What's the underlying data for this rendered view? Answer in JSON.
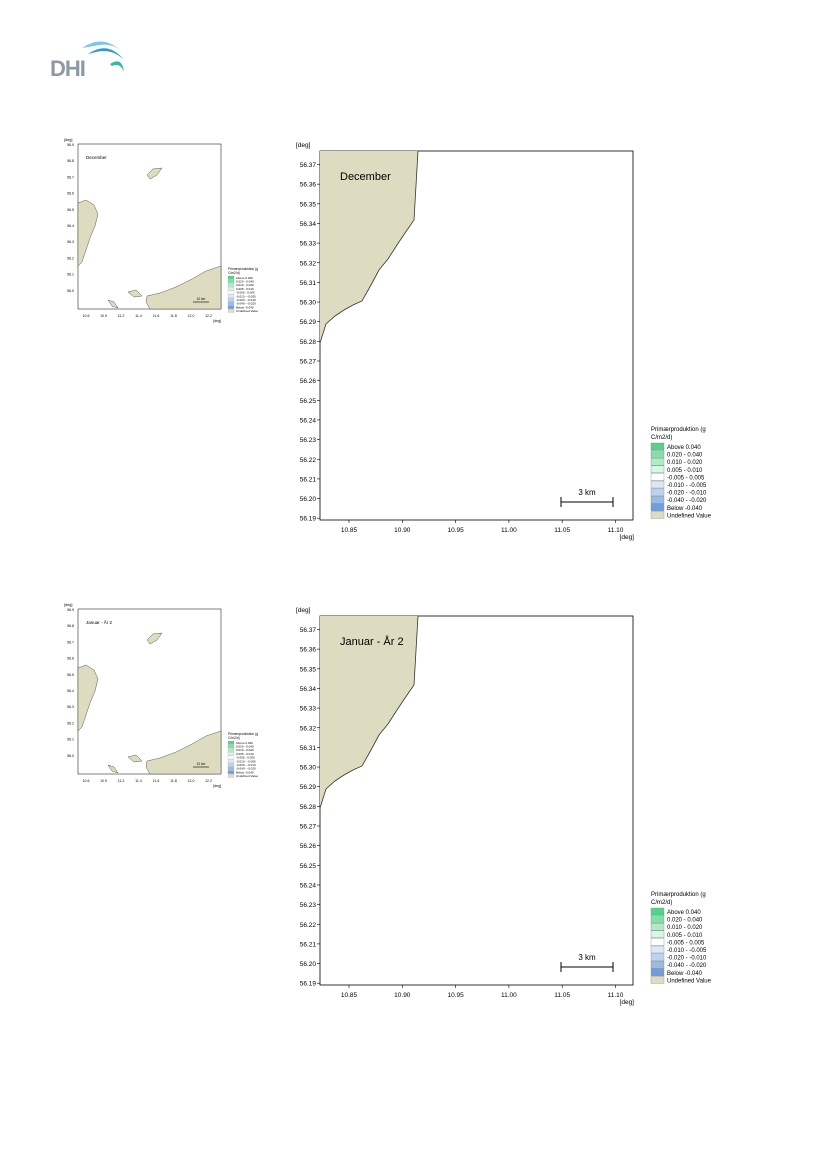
{
  "logo": {
    "text": "DHI",
    "colors": [
      "#7fc6e8",
      "#2a9bd3",
      "#33b99e"
    ]
  },
  "maps": [
    {
      "title": "December",
      "top": 0,
      "unit_y": "[deg]",
      "unit_x": "[deg]",
      "y_ticks": [
        "56.37",
        "56.36",
        "56.35",
        "56.34",
        "56.33",
        "56.32",
        "56.31",
        "56.30",
        "56.29",
        "56.28",
        "56.27",
        "56.26",
        "56.25",
        "56.24",
        "56.23",
        "56.22",
        "56.21",
        "56.20",
        "56.19"
      ],
      "x_ticks": [
        "10.85",
        "10.90",
        "10.95",
        "11.00",
        "11.05",
        "11.10"
      ],
      "scale_label": "3 km"
    },
    {
      "title": "Januar - År 2",
      "top": 465,
      "unit_y": "[deg]",
      "unit_x": "[deg]",
      "y_ticks": [
        "56.37",
        "56.36",
        "56.35",
        "56.34",
        "56.33",
        "56.32",
        "56.31",
        "56.30",
        "56.29",
        "56.28",
        "56.27",
        "56.26",
        "56.25",
        "56.24",
        "56.23",
        "56.22",
        "56.21",
        "56.20",
        "56.19"
      ],
      "x_ticks": [
        "10.85",
        "10.90",
        "10.95",
        "11.00",
        "11.05",
        "11.10"
      ],
      "scale_label": "3 km"
    }
  ],
  "legend": {
    "title_line1": "Primærproduktion (g",
    "title_line2": "C/m2/d)",
    "items": [
      {
        "label": "Above   0.040",
        "color": "#52d48d"
      },
      {
        "label": " 0.020 -  0.040",
        "color": "#7fe0a8"
      },
      {
        "label": " 0.010 -  0.020",
        "color": "#aeecc8"
      },
      {
        "label": " 0.005 -  0.010",
        "color": "#d7f6e4"
      },
      {
        "label": "-0.005 -  0.005",
        "color": "#ffffff"
      },
      {
        "label": "-0.010 - -0.005",
        "color": "#dde8f7"
      },
      {
        "label": "-0.020 - -0.010",
        "color": "#bcd2f0"
      },
      {
        "label": "-0.040 - -0.020",
        "color": "#98bbe8"
      },
      {
        "label": "Below   -0.040",
        "color": "#6f9ee0"
      },
      {
        "label": "Undefined Value",
        "color": "#dedcc0"
      }
    ]
  },
  "thumbnail": {
    "titles": [
      "December",
      "Januar - År 2"
    ],
    "scale_label": "10 km",
    "y_ticks": [
      "56.9",
      "56.8",
      "56.7",
      "56.6",
      "56.5",
      "56.4",
      "56.3",
      "56.2",
      "56.1",
      "56.0"
    ],
    "x_ticks": [
      "10.6",
      "10.9",
      "11.2",
      "11.4",
      "11.6",
      "11.8",
      "12.0",
      "12.2"
    ]
  },
  "colors": {
    "land": "#dedcc0",
    "coast": "#333333",
    "frame": "#000000"
  }
}
